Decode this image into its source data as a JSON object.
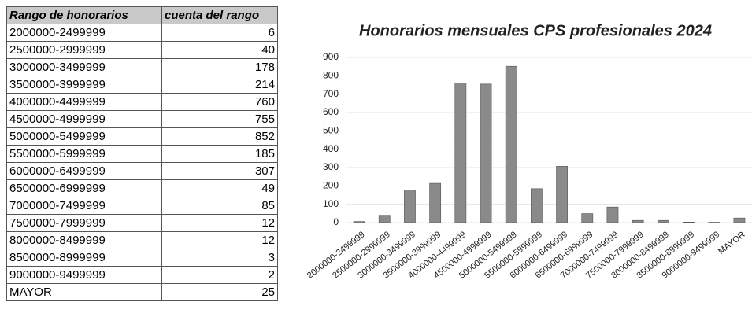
{
  "table": {
    "header": [
      "Rango de  honorarios",
      "cuenta del rango"
    ],
    "rows": [
      [
        "2000000-2499999",
        6
      ],
      [
        "2500000-2999999",
        40
      ],
      [
        "3000000-3499999",
        178
      ],
      [
        "3500000-3999999",
        214
      ],
      [
        "4000000-4499999",
        760
      ],
      [
        "4500000-4999999",
        755
      ],
      [
        "5000000-5499999",
        852
      ],
      [
        "5500000-5999999",
        185
      ],
      [
        "6000000-6499999",
        307
      ],
      [
        "6500000-6999999",
        49
      ],
      [
        "7000000-7499999",
        85
      ],
      [
        "7500000-7999999",
        12
      ],
      [
        "8000000-8499999",
        12
      ],
      [
        "8500000-8999999",
        3
      ],
      [
        "9000000-9499999",
        2
      ],
      [
        "MAYOR",
        25
      ]
    ]
  },
  "chart_data": {
    "type": "bar",
    "title": "Honorarios mensuales CPS profesionales 2024",
    "categories": [
      "2000000-2499999",
      "2500000-2999999",
      "3000000-3499999",
      "3500000-3999999",
      "4000000-4499999",
      "4500000-4999999",
      "5000000-5499999",
      "5500000-5999999",
      "6000000-6499999",
      "6500000-6999999",
      "7000000-7499999",
      "7500000-7999999",
      "8000000-8499999",
      "8500000-8999999",
      "9000000-9499999",
      "MAYOR"
    ],
    "values": [
      6,
      40,
      178,
      214,
      760,
      755,
      852,
      185,
      307,
      49,
      85,
      12,
      12,
      3,
      2,
      25
    ],
    "color": "#8a8a8a",
    "ylim": [
      0,
      900
    ],
    "yticks": [
      0,
      100,
      200,
      300,
      400,
      500,
      600,
      700,
      800,
      900
    ],
    "grid": true
  }
}
